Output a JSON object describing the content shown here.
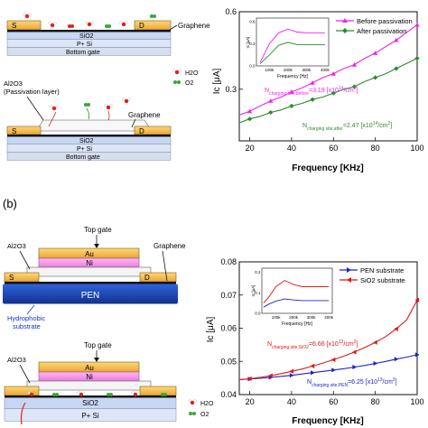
{
  "panel_a": {
    "schematic_top": {
      "source": "S",
      "drain": "D",
      "graphene": "Graphene",
      "sio2": "SiO2",
      "psi": "P+ Si",
      "bottom_gate": "Bottom gate",
      "legend_h2o": "H2O",
      "legend_o2": "O2"
    },
    "schematic_bottom": {
      "al2o3": "Al2O3",
      "passivation": "(Passivation layer)",
      "graphene": "Graphene",
      "source": "S",
      "drain": "D",
      "sio2": "SiO2",
      "psi": "P+ Si",
      "bottom_gate": "Bottom gate"
    }
  },
  "panel_b": {
    "label": "(b)",
    "schematic_top": {
      "top_gate": "Top gate",
      "au": "Au",
      "ni": "Ni",
      "al2o3": "Al2O3",
      "graphene": "Graphene",
      "source": "S",
      "drain": "D",
      "pen": "PEN",
      "hydrophobic_1": "Hydrophobic",
      "hydrophobic_2": "substrate"
    },
    "schematic_bottom": {
      "top_gate": "Top gate",
      "au": "Au",
      "ni": "Ni",
      "al2o3": "Al2O3",
      "sio2": "SiO2",
      "psi": "P+ Si",
      "legend_h2o": "H2O",
      "legend_o2": "O2"
    }
  },
  "colors": {
    "electrode": "#f2b84b",
    "graphene": "#111111",
    "sio2": "#c7d7f2",
    "psi": "#dde6f7",
    "bottom_gate": "#d7dfef",
    "pen": "#1a47b8",
    "au": "#f2b84b",
    "ni": "#f49ae6",
    "magenta": "#ee22ee",
    "green": "#2b8a2b",
    "blue": "#1c25c8",
    "red": "#e01818"
  },
  "chart_data": [
    {
      "type": "line",
      "xlabel": "Frequency [KHz]",
      "ylabel": "Ic [μA]",
      "xlim": [
        15,
        100
      ],
      "ylim": [
        0.1,
        0.6
      ],
      "xticks": [
        "20",
        "40",
        "60",
        "80",
        "100"
      ],
      "yticks": [
        "0.3",
        "0.6"
      ],
      "legend_position": "top-right",
      "series": [
        {
          "name": "Before passivation",
          "color": "#ee22ee",
          "marker": "triangle-up",
          "x": [
            15,
            20,
            25,
            30,
            35,
            40,
            45,
            50,
            55,
            60,
            65,
            70,
            75,
            80,
            85,
            90,
            95,
            100
          ],
          "values": [
            0.2,
            0.215,
            0.235,
            0.255,
            0.27,
            0.29,
            0.305,
            0.325,
            0.345,
            0.36,
            0.38,
            0.395,
            0.42,
            0.44,
            0.465,
            0.49,
            0.52,
            0.55
          ]
        },
        {
          "name": "After passivation",
          "color": "#2b8a2b",
          "marker": "diamond",
          "x": [
            15,
            20,
            25,
            30,
            35,
            40,
            45,
            50,
            55,
            60,
            65,
            70,
            75,
            80,
            85,
            90,
            95,
            100
          ],
          "values": [
            0.17,
            0.185,
            0.195,
            0.21,
            0.22,
            0.235,
            0.245,
            0.26,
            0.27,
            0.285,
            0.3,
            0.31,
            0.33,
            0.345,
            0.36,
            0.38,
            0.4,
            0.42
          ]
        }
      ],
      "annotations": [
        {
          "prefix": "N",
          "sub": "charging site,before",
          "text": "=3.19 [x10",
          "sup": "14",
          "suffix": "/cm",
          "sup2": "2",
          "end": "]",
          "color": "#ee22ee"
        },
        {
          "prefix": "N",
          "sub": "charging site,after",
          "text": "=2.47 [x10",
          "sup": "14",
          "suffix": "/cm",
          "sup2": "2",
          "end": "]",
          "color": "#2b8a2b"
        }
      ],
      "inset": {
        "xlabel": "Frequency [Hz]",
        "ylabel": "Ic [μA]",
        "xticks": [
          "100k",
          "200k",
          "300k",
          "400k"
        ],
        "yticks": [
          "0.0",
          "0.3",
          "0.6"
        ],
        "series": [
          {
            "color": "#ee22ee",
            "x": [
              50,
              100,
              150,
              200,
              250,
              300,
              350,
              400
            ],
            "values": [
              0.05,
              0.3,
              0.45,
              0.5,
              0.46,
              0.45,
              0.45,
              0.45
            ]
          },
          {
            "color": "#2b8a2b",
            "x": [
              50,
              100,
              150,
              200,
              250,
              300,
              350,
              400
            ],
            "values": [
              0.03,
              0.15,
              0.28,
              0.32,
              0.29,
              0.29,
              0.29,
              0.29
            ]
          }
        ]
      }
    },
    {
      "type": "line",
      "xlabel": "Frequency [KHz]",
      "ylabel": "Ic [μA]",
      "xlim": [
        15,
        100
      ],
      "ylim": [
        0.04,
        0.08
      ],
      "xticks": [
        "20",
        "40",
        "60",
        "80",
        "100"
      ],
      "yticks": [
        "0.04",
        "0.05",
        "0.06",
        "0.07",
        "0.08"
      ],
      "legend_position": "top-right",
      "series": [
        {
          "name": "PEN substrate",
          "color": "#1c25c8",
          "marker": "triangle-right",
          "x": [
            15,
            20,
            25,
            30,
            35,
            40,
            45,
            50,
            55,
            60,
            65,
            70,
            75,
            80,
            85,
            90,
            95,
            100
          ],
          "values": [
            0.0445,
            0.0447,
            0.0449,
            0.0452,
            0.0455,
            0.0458,
            0.0462,
            0.0466,
            0.047,
            0.0474,
            0.0478,
            0.0483,
            0.0488,
            0.0494,
            0.05,
            0.0507,
            0.0513,
            0.052
          ]
        },
        {
          "name": "SiO2 substrate",
          "color": "#e01818",
          "marker": "triangle-left",
          "x": [
            15,
            20,
            25,
            30,
            35,
            40,
            45,
            50,
            55,
            60,
            65,
            70,
            75,
            80,
            85,
            90,
            95,
            100
          ],
          "values": [
            0.0445,
            0.0448,
            0.0452,
            0.0457,
            0.0463,
            0.047,
            0.0477,
            0.0486,
            0.0495,
            0.0505,
            0.0516,
            0.0528,
            0.0542,
            0.0557,
            0.0575,
            0.0598,
            0.0625,
            0.0685
          ]
        }
      ],
      "annotations": [
        {
          "prefix": "N",
          "sub": "charging site,SiO2",
          "text": "=6.66 [x10",
          "sup": "12",
          "suffix": "/cm",
          "sup2": "2",
          "end": "]",
          "color": "#e01818"
        },
        {
          "prefix": "N",
          "sub": "charging site,PEN",
          "text": "=6.25 [x10",
          "sup": "13",
          "suffix": "/cm",
          "sup2": "2",
          "end": "]",
          "color": "#1c25c8"
        }
      ],
      "inset": {
        "xlabel": "Frequency [Hz]",
        "ylabel": "Ic [μA]",
        "xticks": [
          "100k",
          "200k",
          "300k",
          "400k"
        ],
        "yticks": [
          "0.0",
          "0.1",
          "0.2"
        ],
        "series": [
          {
            "color": "#e01818",
            "x": [
              30,
              60,
              100,
              150,
              200,
              250,
              300,
              350,
              400
            ],
            "values": [
              0.05,
              0.08,
              0.13,
              0.16,
              0.14,
              0.13,
              0.13,
              0.13,
              0.13
            ]
          },
          {
            "color": "#1c25c8",
            "x": [
              30,
              60,
              100,
              150,
              200,
              250,
              300,
              350,
              400
            ],
            "values": [
              0.03,
              0.045,
              0.06,
              0.07,
              0.065,
              0.062,
              0.062,
              0.062,
              0.062
            ]
          }
        ]
      }
    }
  ]
}
